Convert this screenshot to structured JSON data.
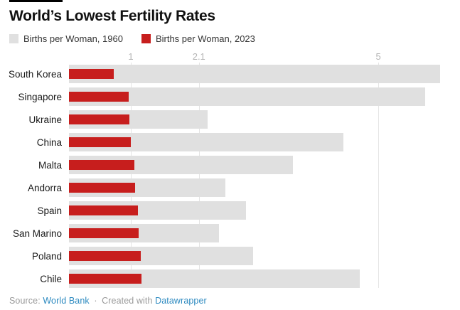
{
  "title": "World’s Lowest Fertility Rates",
  "chart_data": {
    "type": "bar",
    "orientation": "horizontal",
    "title": "World’s Lowest Fertility Rates",
    "categories": [
      "South Korea",
      "Singapore",
      "Ukraine",
      "China",
      "Malta",
      "Andorra",
      "Spain",
      "San Marino",
      "Poland",
      "Chile"
    ],
    "series": [
      {
        "name": "Births per Woman, 1960",
        "color": "#e0e0e0",
        "values": [
          6.0,
          5.76,
          2.24,
          4.43,
          3.62,
          2.53,
          2.86,
          2.42,
          2.98,
          4.7
        ]
      },
      {
        "name": "Births per Woman, 2023",
        "color": "#c71e1d",
        "values": [
          0.72,
          0.97,
          0.98,
          1.0,
          1.06,
          1.07,
          1.12,
          1.13,
          1.16,
          1.17
        ]
      }
    ],
    "x_axis": {
      "position": "top",
      "ticks": [
        1,
        2.1,
        5
      ],
      "tick_labels": [
        "1",
        "2.1",
        "5"
      ],
      "range": [
        0,
        6.32
      ],
      "gridlines": true
    },
    "legend_position": "top-left",
    "grid": true
  },
  "footer": {
    "source_label": "Source:",
    "source_link": "World Bank",
    "separator": "·",
    "created_text": "Created with",
    "tool_link": "Datawrapper",
    "link_color": "#2d8ac0",
    "text_color": "#9a9a9a"
  }
}
